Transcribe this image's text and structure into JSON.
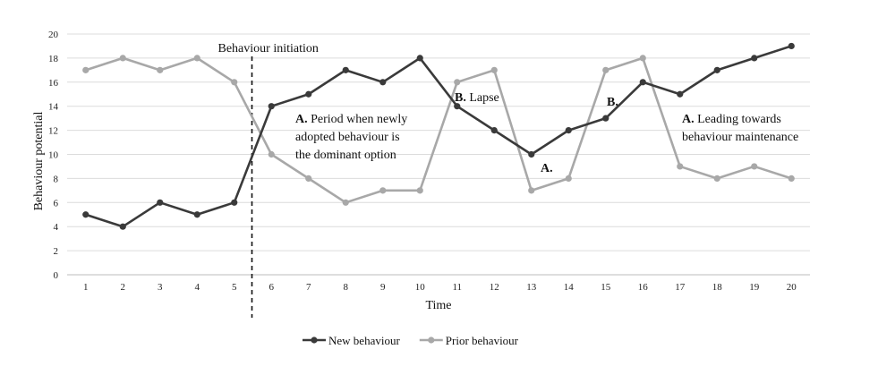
{
  "chart_data": {
    "type": "line",
    "xlabel": "Time",
    "ylabel": "Behaviour potential",
    "ylim": [
      0,
      20
    ],
    "ytick_step": 2,
    "grid": true,
    "legend_position": "bottom",
    "categories": [
      "1",
      "2",
      "3",
      "4",
      "5",
      "6",
      "7",
      "8",
      "9",
      "10",
      "11",
      "12",
      "13",
      "14",
      "15",
      "16",
      "17",
      "18",
      "19",
      "20"
    ],
    "series": [
      {
        "name": "New behaviour",
        "color": "#3a3a3a",
        "values": [
          5,
          4,
          6,
          5,
          6,
          14,
          15,
          17,
          16,
          18,
          14,
          12,
          10,
          12,
          13,
          16,
          15,
          17,
          18,
          19
        ]
      },
      {
        "name": "Prior behaviour",
        "color": "#a8a8a8",
        "values": [
          17,
          18,
          17,
          18,
          16,
          10,
          8,
          6,
          7,
          7,
          16,
          17,
          7,
          8,
          17,
          18,
          9,
          8,
          9,
          8
        ]
      }
    ],
    "divider": {
      "label": "Behaviour initiation",
      "x_between": [
        5,
        6
      ]
    },
    "annotations": [
      {
        "bold": "A.",
        "lines": [
          "Period when newly",
          "adopted behaviour is",
          "the dominant option"
        ]
      },
      {
        "bold": "B.",
        "lines": [
          "Lapse"
        ]
      },
      {
        "bold": "A.",
        "lines": [
          ""
        ]
      },
      {
        "bold": "B.",
        "lines": [
          ""
        ]
      },
      {
        "bold": "A.",
        "lines": [
          "Leading towards",
          "behaviour maintenance"
        ]
      }
    ]
  }
}
